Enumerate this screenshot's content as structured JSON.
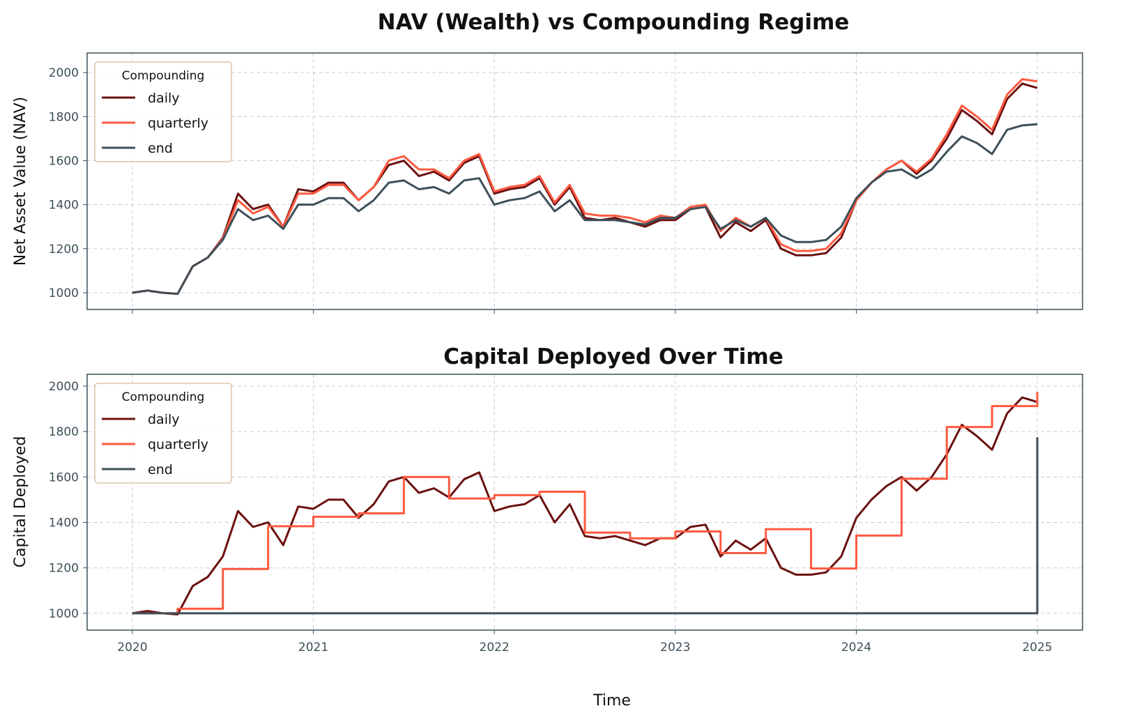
{
  "chart_data": [
    {
      "type": "line",
      "title": "NAV (Wealth) vs Compounding Regime",
      "xlabel": "",
      "ylabel": "Net Asset Value (NAV)",
      "xlim": [
        "2019-10",
        "2025-04"
      ],
      "ylim": [
        924,
        2089
      ],
      "yticks": [
        1000,
        1200,
        1400,
        1600,
        1800,
        2000
      ],
      "grid": true,
      "legend": {
        "title": "Compounding",
        "placement": "upper-left"
      },
      "x": [
        "2020-01",
        "2020-02",
        "2020-03",
        "2020-04",
        "2020-05",
        "2020-06",
        "2020-07",
        "2020-08",
        "2020-09",
        "2020-10",
        "2020-11",
        "2020-12",
        "2021-01",
        "2021-02",
        "2021-03",
        "2021-04",
        "2021-05",
        "2021-06",
        "2021-07",
        "2021-08",
        "2021-09",
        "2021-10",
        "2021-11",
        "2021-12",
        "2022-01",
        "2022-02",
        "2022-03",
        "2022-04",
        "2022-05",
        "2022-06",
        "2022-07",
        "2022-08",
        "2022-09",
        "2022-10",
        "2022-11",
        "2022-12",
        "2023-01",
        "2023-02",
        "2023-03",
        "2023-04",
        "2023-05",
        "2023-06",
        "2023-07",
        "2023-08",
        "2023-09",
        "2023-10",
        "2023-11",
        "2023-12",
        "2024-01",
        "2024-02",
        "2024-03",
        "2024-04",
        "2024-05",
        "2024-06",
        "2024-07",
        "2024-08",
        "2024-09",
        "2024-10",
        "2024-11",
        "2024-12",
        "2025-01"
      ],
      "series": [
        {
          "name": "daily",
          "color": "#6b1010",
          "values": [
            1000,
            1010,
            1000,
            995,
            1120,
            1160,
            1250,
            1450,
            1380,
            1400,
            1300,
            1470,
            1460,
            1500,
            1500,
            1420,
            1480,
            1580,
            1600,
            1530,
            1550,
            1510,
            1590,
            1620,
            1450,
            1470,
            1480,
            1520,
            1400,
            1480,
            1340,
            1330,
            1340,
            1320,
            1300,
            1330,
            1330,
            1380,
            1390,
            1250,
            1320,
            1280,
            1330,
            1200,
            1170,
            1170,
            1180,
            1250,
            1420,
            1500,
            1560,
            1600,
            1540,
            1600,
            1700,
            1830,
            1780,
            1720,
            1880,
            1950,
            1930
          ]
        },
        {
          "name": "quarterly",
          "color": "#ff5a40",
          "values": [
            1000,
            1010,
            1000,
            995,
            1120,
            1160,
            1245,
            1420,
            1360,
            1390,
            1300,
            1450,
            1450,
            1490,
            1490,
            1420,
            1480,
            1600,
            1620,
            1560,
            1560,
            1520,
            1600,
            1630,
            1460,
            1480,
            1490,
            1530,
            1410,
            1490,
            1360,
            1350,
            1350,
            1340,
            1320,
            1350,
            1340,
            1390,
            1400,
            1280,
            1340,
            1300,
            1340,
            1220,
            1190,
            1190,
            1200,
            1270,
            1420,
            1500,
            1560,
            1600,
            1550,
            1610,
            1720,
            1850,
            1800,
            1740,
            1900,
            1970,
            1960
          ]
        },
        {
          "name": "end",
          "color": "#3d4f58",
          "values": [
            1000,
            1010,
            1000,
            995,
            1120,
            1160,
            1240,
            1380,
            1330,
            1350,
            1290,
            1400,
            1400,
            1430,
            1430,
            1370,
            1420,
            1500,
            1510,
            1470,
            1480,
            1450,
            1510,
            1520,
            1400,
            1420,
            1430,
            1460,
            1370,
            1420,
            1330,
            1330,
            1330,
            1320,
            1310,
            1340,
            1340,
            1380,
            1390,
            1290,
            1330,
            1300,
            1340,
            1260,
            1230,
            1230,
            1240,
            1300,
            1430,
            1500,
            1550,
            1560,
            1520,
            1560,
            1640,
            1710,
            1680,
            1630,
            1740,
            1760,
            1765
          ]
        }
      ]
    },
    {
      "type": "line",
      "title": "Capital Deployed Over Time",
      "xlabel": "Time",
      "ylabel": "Capital Deployed",
      "xlim": [
        "2019-10",
        "2025-04"
      ],
      "ylim": [
        926,
        2052
      ],
      "xticks": [
        "2020",
        "2021",
        "2022",
        "2023",
        "2024",
        "2025"
      ],
      "yticks": [
        1000,
        1200,
        1400,
        1600,
        1800,
        2000
      ],
      "grid": true,
      "legend": {
        "title": "Compounding",
        "placement": "upper-left"
      },
      "series": [
        {
          "name": "daily",
          "color": "#6b1010",
          "same_as": "nav_daily"
        },
        {
          "name": "quarterly",
          "color": "#ff5a40",
          "step": true,
          "x": [
            "2020-01",
            "2020-04",
            "2020-07",
            "2020-10",
            "2021-01",
            "2021-04",
            "2021-07",
            "2021-10",
            "2022-01",
            "2022-04",
            "2022-07",
            "2022-10",
            "2023-01",
            "2023-04",
            "2023-07",
            "2023-10",
            "2024-01",
            "2024-04",
            "2024-07",
            "2024-10",
            "2025-01"
          ],
          "values": [
            1000,
            1020,
            1195,
            1383,
            1425,
            1440,
            1600,
            1505,
            1520,
            1535,
            1355,
            1330,
            1360,
            1265,
            1370,
            1197,
            1342,
            1592,
            1820,
            1912,
            1975
          ]
        },
        {
          "name": "end",
          "color": "#3d4f58",
          "step": true,
          "x": [
            "2020-01",
            "2025-01"
          ],
          "values": [
            1000,
            1775
          ]
        }
      ]
    }
  ]
}
